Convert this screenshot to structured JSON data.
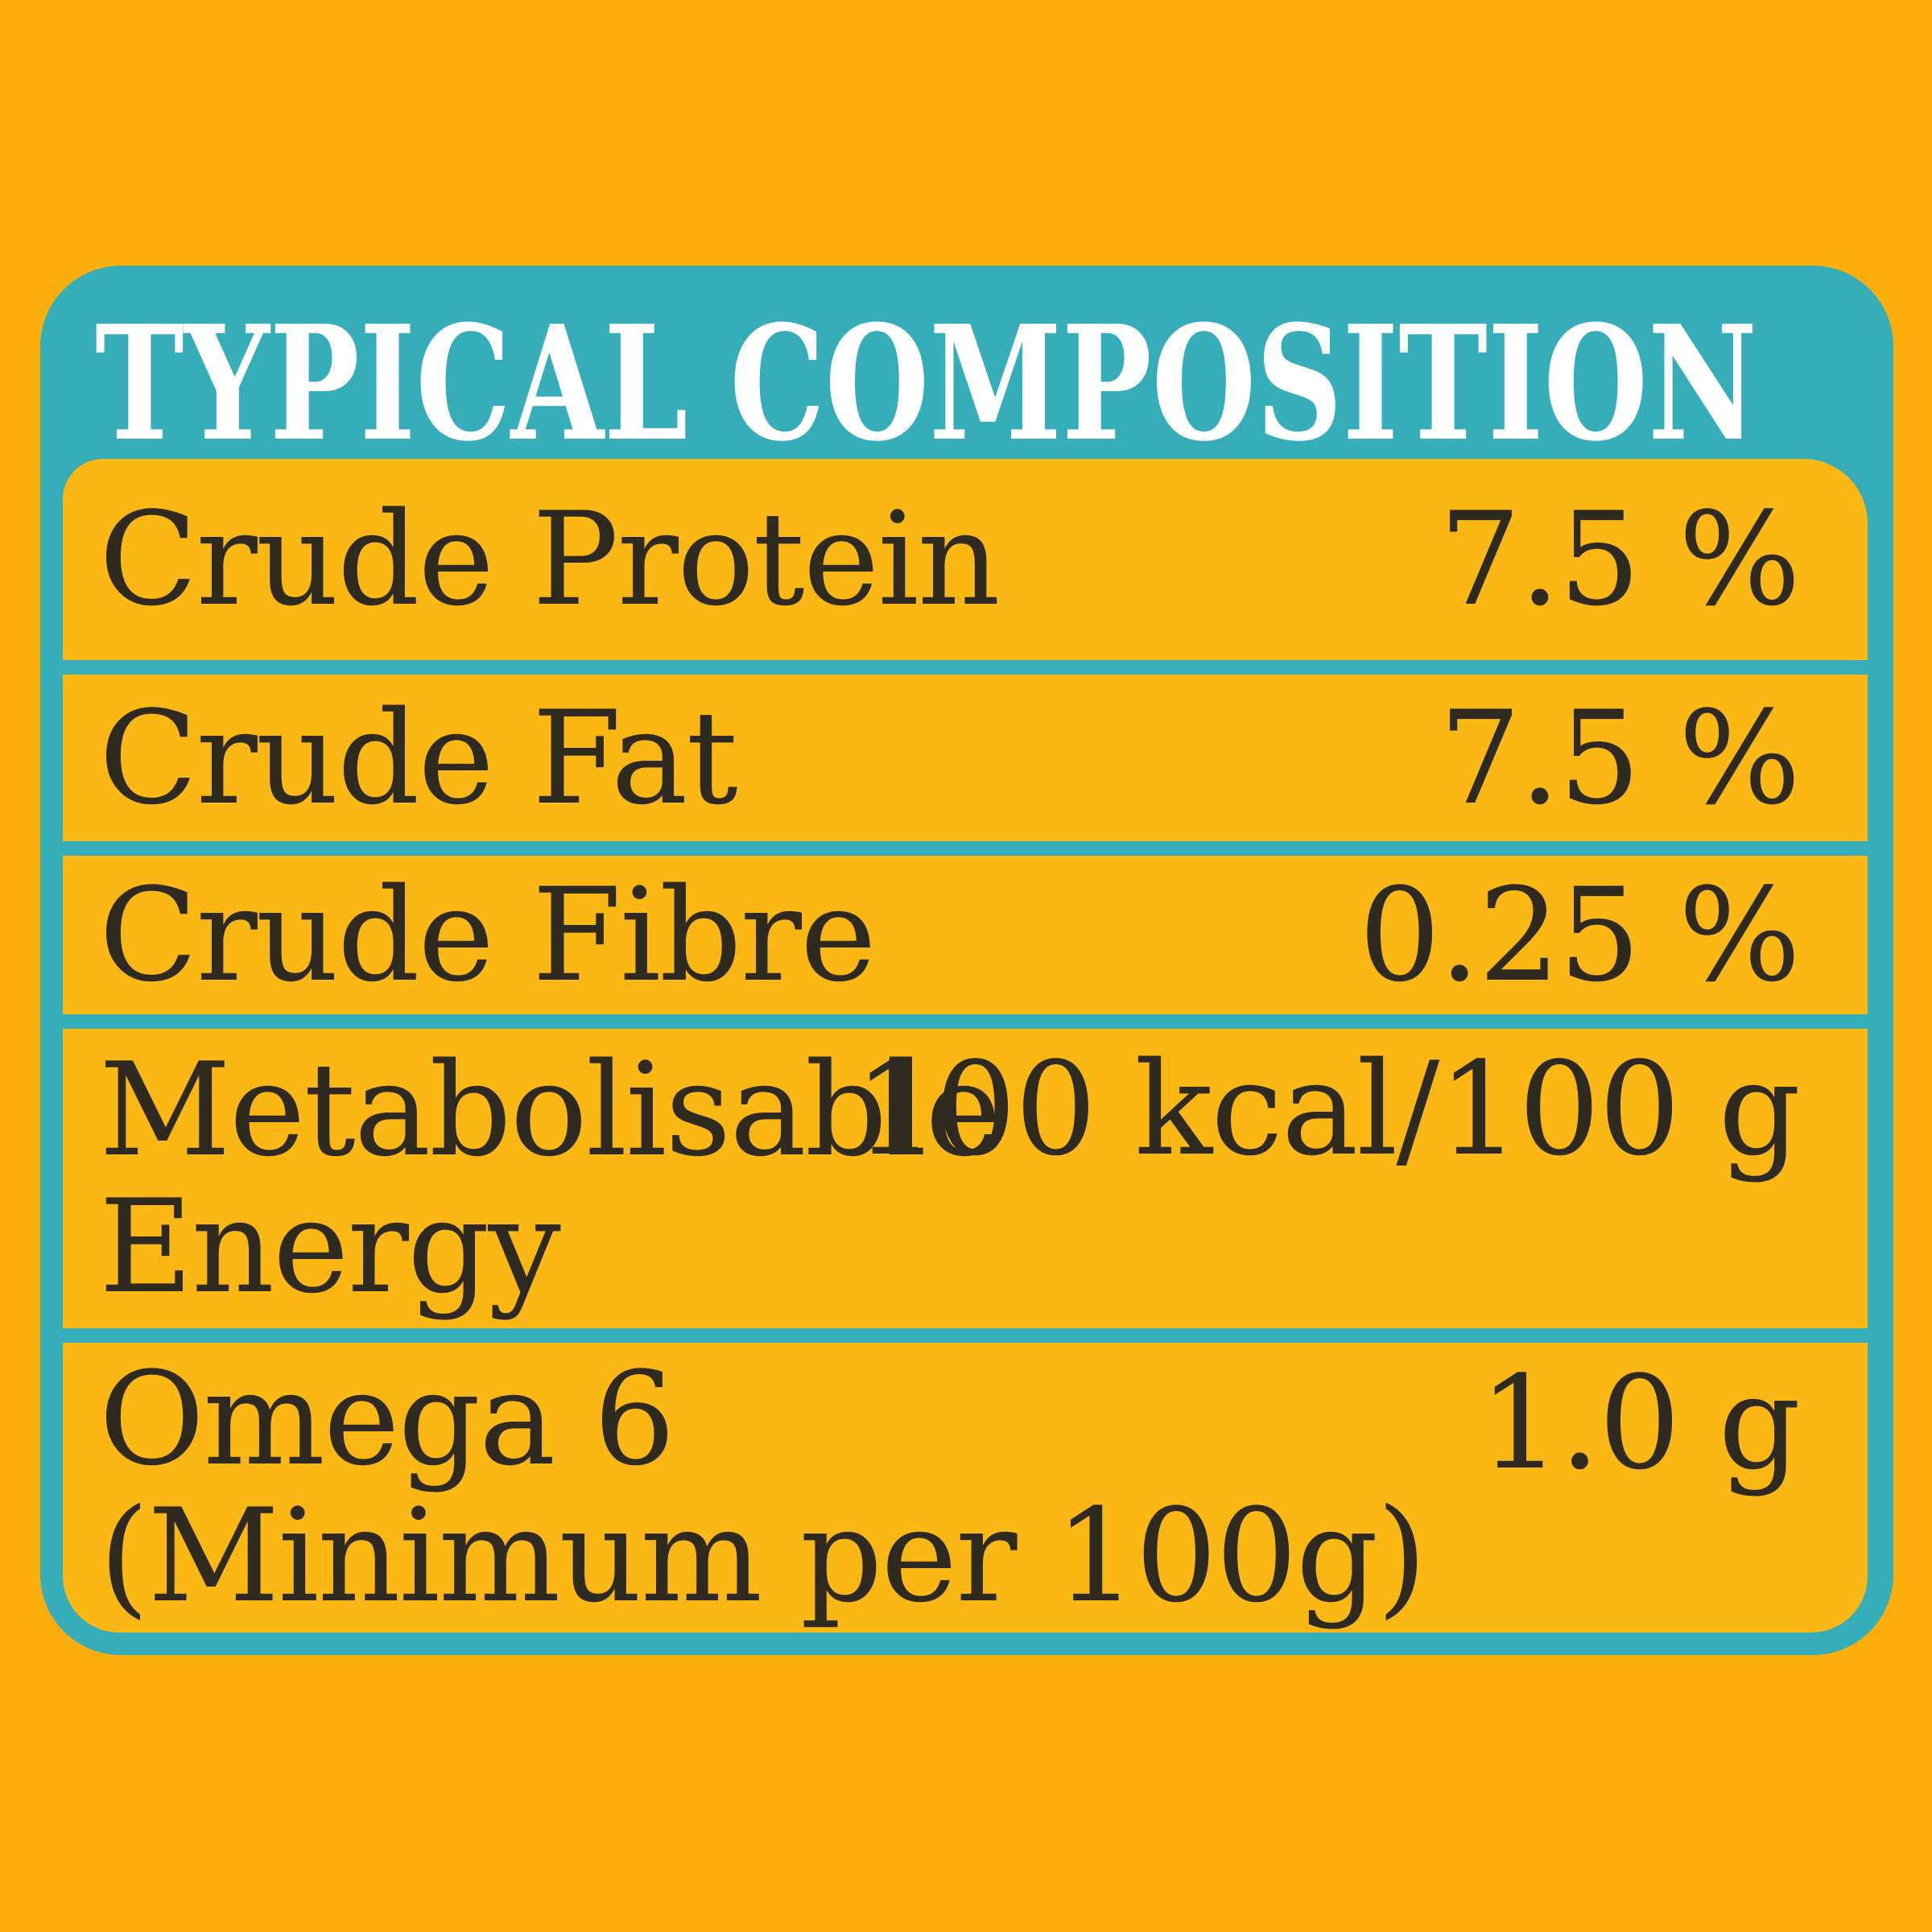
{
  "header": {
    "title": "TYPICAL COMPOSITION"
  },
  "table": {
    "rows": [
      {
        "label": "Crude Protein",
        "label2": "",
        "value": "7.5 %"
      },
      {
        "label": "Crude Fat",
        "label2": "",
        "value": "7.5 %"
      },
      {
        "label": "Crude Fibre",
        "label2": "",
        "value": "0.25 %"
      },
      {
        "label": "Metabolisable",
        "label2": "Energy",
        "value": "100 kcal/100 g"
      },
      {
        "label": "Omega 6",
        "label2": "(Minimum per 100g)",
        "value": "1.0 g"
      }
    ]
  },
  "colors": {
    "background": "#FCAE0D",
    "card_teal": "#35AEBA",
    "row_yellow": "#FBB714",
    "text_dark": "#2E2A20",
    "header_text": "#FFFFFF"
  }
}
